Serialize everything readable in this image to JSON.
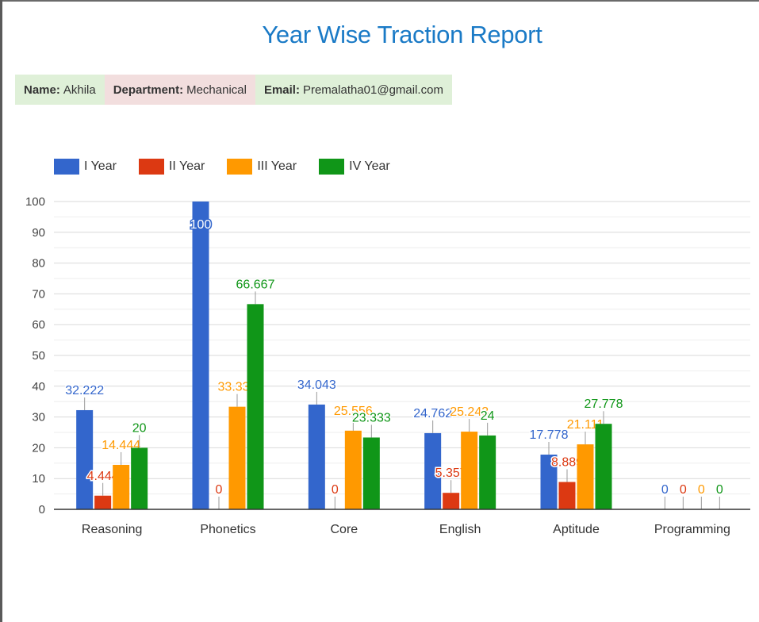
{
  "header": {
    "title": "Year Wise Traction Report"
  },
  "info": {
    "name_label": "Name:",
    "name_value": "Akhila",
    "dept_label": "Department:",
    "dept_value": "Mechanical",
    "email_label": "Email:",
    "email_value": "Premalatha01@gmail.com"
  },
  "colors": {
    "title": "#1a7ac6",
    "series": [
      "#3366cc",
      "#dc3912",
      "#ff9900",
      "#109618"
    ],
    "grid": "#dddddd",
    "axis": "#333333"
  },
  "chart_data": {
    "type": "bar",
    "categories": [
      "Reasoning",
      "Phonetics",
      "Core",
      "English",
      "Aptitude",
      "Programming"
    ],
    "series": [
      {
        "name": "I Year",
        "values": [
          32.222,
          100,
          34.043,
          24.762,
          17.778,
          0
        ],
        "labels": [
          "32.222",
          "100",
          "34.043",
          "24.762",
          "17.778",
          "0"
        ]
      },
      {
        "name": "II Year",
        "values": [
          4.444,
          0,
          0,
          5.357,
          8.889,
          0
        ],
        "labels": [
          "4.444",
          "0",
          "0",
          "5.357",
          "8.889",
          "0"
        ]
      },
      {
        "name": "III Year",
        "values": [
          14.444,
          33.333,
          25.556,
          25.243,
          21.111,
          0
        ],
        "labels": [
          "14.444",
          "33.333",
          "25.556",
          "25.243",
          "21.111",
          "0"
        ]
      },
      {
        "name": "IV Year",
        "values": [
          20,
          66.667,
          23.333,
          24,
          27.778,
          0
        ],
        "labels": [
          "20",
          "66.667",
          "23.333",
          "24",
          "27.778",
          "0"
        ]
      }
    ],
    "ylim": [
      0,
      100
    ],
    "yticks": [
      "0",
      "10",
      "20",
      "30",
      "40",
      "50",
      "60",
      "70",
      "80",
      "90",
      "100"
    ],
    "grid": true,
    "legend_position": "top-left"
  }
}
